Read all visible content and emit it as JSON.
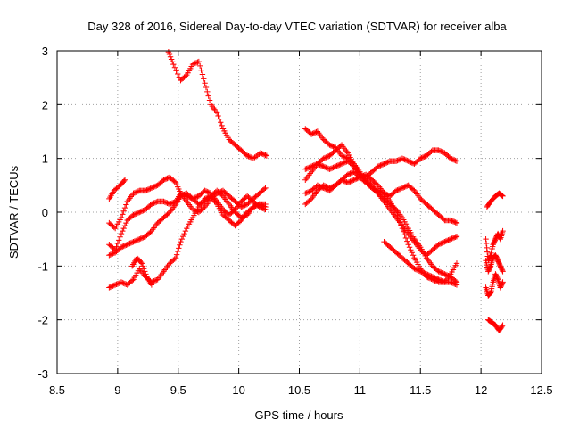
{
  "chart_data": {
    "type": "scatter",
    "title": "Day 328 of 2016, Sidereal Day-to-day VTEC variation (SDTVAR) for receiver alba",
    "xlabel": "GPS time / hours",
    "ylabel": "SDTVAR / TECUs",
    "xlim": [
      8.5,
      12.5
    ],
    "ylim": [
      -3,
      3
    ],
    "xticks": [
      8.5,
      9,
      9.5,
      10,
      10.5,
      11,
      11.5,
      12,
      12.5
    ],
    "yticks": [
      -3,
      -2,
      -1,
      0,
      1,
      2,
      3
    ],
    "xtick_labels": [
      "8.5",
      "9",
      "9.5",
      "10",
      "10.5",
      "11",
      "11.5",
      "12",
      "12.5"
    ],
    "ytick_labels": [
      "-3",
      "-2",
      "-1",
      "0",
      "1",
      "2",
      "3"
    ],
    "grid": true,
    "marker": "+",
    "color": "#ff0000",
    "series": [
      {
        "name": "s1",
        "x": [
          9.42,
          9.46,
          9.52,
          9.57,
          9.62,
          9.67,
          9.72,
          9.77,
          9.82,
          9.87,
          9.92,
          9.97,
          10.02,
          10.07,
          10.12,
          10.18,
          10.23
        ],
        "y": [
          2.98,
          2.75,
          2.45,
          2.55,
          2.75,
          2.8,
          2.4,
          2.0,
          1.85,
          1.55,
          1.35,
          1.25,
          1.15,
          1.05,
          1.0,
          1.1,
          1.05
        ]
      },
      {
        "name": "s2",
        "x": [
          8.93,
          8.97,
          9.02,
          9.06
        ],
        "y": [
          0.25,
          0.4,
          0.5,
          0.6
        ]
      },
      {
        "name": "s3",
        "x": [
          8.93,
          8.98,
          9.03,
          9.08,
          9.13,
          9.18,
          9.23,
          9.28,
          9.33,
          9.38,
          9.43,
          9.48,
          9.52,
          9.57,
          9.62,
          9.67,
          9.72,
          9.77,
          9.82,
          9.87,
          9.92,
          9.97,
          10.02,
          10.07,
          10.12,
          10.17,
          10.22
        ],
        "y": [
          -0.2,
          -0.3,
          -0.1,
          0.2,
          0.35,
          0.4,
          0.4,
          0.45,
          0.5,
          0.6,
          0.65,
          0.55,
          0.35,
          0.2,
          0.05,
          0.0,
          0.1,
          0.25,
          0.35,
          0.4,
          0.3,
          0.2,
          0.1,
          0.15,
          0.25,
          0.35,
          0.45
        ]
      },
      {
        "name": "s4",
        "x": [
          8.93,
          8.98,
          9.03,
          9.08,
          9.13,
          9.18,
          9.23,
          9.28,
          9.33,
          9.38,
          9.43,
          9.48,
          9.52,
          9.57,
          9.62,
          9.67,
          9.72,
          9.77,
          9.82,
          9.87,
          9.92,
          9.97,
          10.02,
          10.07,
          10.12,
          10.17,
          10.22
        ],
        "y": [
          -0.6,
          -0.7,
          -0.4,
          -0.15,
          -0.05,
          0.0,
          0.05,
          0.15,
          0.2,
          0.2,
          0.15,
          0.2,
          0.35,
          0.3,
          0.25,
          0.3,
          0.4,
          0.35,
          0.2,
          0.05,
          -0.05,
          0.05,
          0.2,
          0.3,
          0.2,
          0.1,
          0.05
        ]
      },
      {
        "name": "s5",
        "x": [
          8.93,
          8.98,
          9.03,
          9.08,
          9.13,
          9.18,
          9.23,
          9.28,
          9.33,
          9.38,
          9.43,
          9.48,
          9.52,
          9.57,
          9.62,
          9.67,
          9.72,
          9.77,
          9.82,
          9.87,
          9.92,
          9.97,
          10.02,
          10.07,
          10.12,
          10.17,
          10.22
        ],
        "y": [
          -0.8,
          -0.75,
          -0.65,
          -0.6,
          -0.55,
          -0.5,
          -0.45,
          -0.35,
          -0.2,
          -0.1,
          0.0,
          0.15,
          0.3,
          0.35,
          0.25,
          0.15,
          0.2,
          0.3,
          0.4,
          0.3,
          0.15,
          0.0,
          -0.1,
          -0.05,
          0.1,
          0.15,
          0.1
        ]
      },
      {
        "name": "s6",
        "x": [
          8.93,
          8.98,
          9.03,
          9.08,
          9.13,
          9.18,
          9.23,
          9.28,
          9.33,
          9.38,
          9.43,
          9.48,
          9.52,
          9.57,
          9.62,
          9.67,
          9.72,
          9.77,
          9.82,
          9.87,
          9.92,
          9.97,
          10.02,
          10.07,
          10.12,
          10.17,
          10.22
        ],
        "y": [
          -1.4,
          -1.35,
          -1.3,
          -1.35,
          -1.25,
          -1.05,
          -1.2,
          -1.3,
          -1.25,
          -1.1,
          -0.95,
          -0.85,
          -0.55,
          -0.3,
          -0.1,
          0.1,
          0.25,
          0.3,
          0.15,
          -0.05,
          -0.15,
          -0.25,
          -0.15,
          0.0,
          0.1,
          0.15,
          0.15
        ]
      },
      {
        "name": "s7",
        "x": [
          9.12,
          9.16,
          9.2,
          9.24,
          9.28
        ],
        "y": [
          -1.0,
          -0.85,
          -0.95,
          -1.2,
          -1.35
        ]
      },
      {
        "name": "s8",
        "x": [
          10.55,
          10.6,
          10.65,
          10.7,
          10.75,
          10.8,
          10.85,
          10.9,
          10.95,
          11.0,
          11.05,
          11.1,
          11.15,
          11.2,
          11.25,
          11.3,
          11.35,
          11.4,
          11.45,
          11.5,
          11.55,
          11.6,
          11.65,
          11.7,
          11.75,
          11.8
        ],
        "y": [
          1.55,
          1.45,
          1.5,
          1.35,
          1.25,
          1.2,
          1.05,
          1.0,
          0.9,
          0.7,
          0.6,
          0.5,
          0.35,
          0.2,
          0.05,
          -0.1,
          -0.25,
          -0.4,
          -0.55,
          -0.7,
          -0.8,
          -0.7,
          -0.6,
          -0.55,
          -0.5,
          -0.45
        ]
      },
      {
        "name": "s9",
        "x": [
          10.55,
          10.6,
          10.65,
          10.7,
          10.75,
          10.8,
          10.85,
          10.9,
          10.95,
          11.0,
          11.05,
          11.1,
          11.15,
          11.2,
          11.25,
          11.3,
          11.35,
          11.4,
          11.45,
          11.5,
          11.55,
          11.6,
          11.65,
          11.7,
          11.75,
          11.8
        ],
        "y": [
          0.8,
          0.85,
          0.9,
          0.85,
          0.8,
          0.85,
          0.9,
          0.95,
          0.85,
          0.7,
          0.65,
          0.75,
          0.85,
          0.9,
          0.95,
          0.95,
          1.0,
          0.95,
          0.9,
          1.0,
          1.05,
          1.15,
          1.15,
          1.1,
          1.0,
          0.95
        ]
      },
      {
        "name": "s10",
        "x": [
          10.55,
          10.6,
          10.65,
          10.7,
          10.75,
          10.8,
          10.85,
          10.9,
          10.95,
          11.0,
          11.05,
          11.1,
          11.15,
          11.2,
          11.25,
          11.3,
          11.35,
          11.4,
          11.45,
          11.5,
          11.55,
          11.6,
          11.65,
          11.7,
          11.75,
          11.8
        ],
        "y": [
          0.6,
          0.75,
          0.9,
          1.0,
          1.05,
          1.15,
          1.25,
          1.1,
          0.9,
          0.75,
          0.55,
          0.45,
          0.35,
          0.25,
          0.15,
          0.05,
          -0.1,
          -0.3,
          -0.5,
          -0.65,
          -0.85,
          -1.0,
          -1.1,
          -1.15,
          -1.2,
          -1.3
        ]
      },
      {
        "name": "s11",
        "x": [
          10.55,
          10.6,
          10.65,
          10.7,
          10.75,
          10.8,
          10.85,
          10.9,
          10.95,
          11.0,
          11.05,
          11.1,
          11.15,
          11.2,
          11.25,
          11.3,
          11.35,
          11.4,
          11.45,
          11.5,
          11.55,
          11.6,
          11.65,
          11.7,
          11.75,
          11.8
        ],
        "y": [
          0.35,
          0.4,
          0.5,
          0.45,
          0.4,
          0.5,
          0.6,
          0.55,
          0.6,
          0.65,
          0.7,
          0.6,
          0.5,
          0.35,
          0.2,
          0.0,
          -0.3,
          -0.6,
          -0.85,
          -1.05,
          -1.2,
          -1.25,
          -1.3,
          -1.3,
          -1.3,
          -1.35
        ]
      },
      {
        "name": "s12",
        "x": [
          10.55,
          10.6,
          10.65,
          10.7,
          10.75,
          10.8,
          10.85,
          10.9,
          10.95,
          11.0,
          11.05,
          11.1,
          11.15,
          11.2,
          11.25,
          11.3,
          11.35,
          11.4,
          11.45,
          11.5,
          11.55,
          11.6,
          11.65,
          11.7,
          11.75,
          11.8
        ],
        "y": [
          0.15,
          0.25,
          0.4,
          0.5,
          0.45,
          0.5,
          0.6,
          0.7,
          0.75,
          0.65,
          0.55,
          0.45,
          0.4,
          0.35,
          0.3,
          0.4,
          0.45,
          0.5,
          0.4,
          0.25,
          0.15,
          0.05,
          -0.05,
          -0.15,
          -0.15,
          -0.2
        ]
      },
      {
        "name": "s13",
        "x": [
          11.2,
          11.25,
          11.3,
          11.35,
          11.4,
          11.45,
          11.5,
          11.55,
          11.6,
          11.65,
          11.7,
          11.75,
          11.8
        ],
        "y": [
          -0.55,
          -0.65,
          -0.75,
          -0.85,
          -0.95,
          -1.05,
          -1.1,
          -1.15,
          -1.2,
          -1.25,
          -1.3,
          -1.15,
          -0.95
        ]
      },
      {
        "name": "s14",
        "x": [
          12.05,
          12.08,
          12.12,
          12.15,
          12.18
        ],
        "y": [
          0.1,
          0.2,
          0.3,
          0.35,
          0.3
        ]
      },
      {
        "name": "s15",
        "x": [
          12.04,
          12.06,
          12.08,
          12.1,
          12.12,
          12.14,
          12.16,
          12.18
        ],
        "y": [
          -0.5,
          -0.9,
          -0.8,
          -0.6,
          -0.5,
          -0.4,
          -0.5,
          -0.35
        ]
      },
      {
        "name": "s16",
        "x": [
          12.04,
          12.06,
          12.08,
          12.1,
          12.12,
          12.14,
          12.16,
          12.18
        ],
        "y": [
          -0.9,
          -1.1,
          -1.0,
          -0.85,
          -0.8,
          -0.9,
          -1.0,
          -1.1
        ]
      },
      {
        "name": "s17",
        "x": [
          12.04,
          12.06,
          12.08,
          12.1,
          12.12,
          12.14,
          12.16,
          12.18
        ],
        "y": [
          -1.4,
          -1.55,
          -1.5,
          -1.3,
          -1.15,
          -1.25,
          -1.4,
          -1.3
        ]
      },
      {
        "name": "s18",
        "x": [
          12.06,
          12.09,
          12.12,
          12.15,
          12.18
        ],
        "y": [
          -2.0,
          -2.05,
          -2.1,
          -2.2,
          -2.1
        ]
      }
    ]
  }
}
